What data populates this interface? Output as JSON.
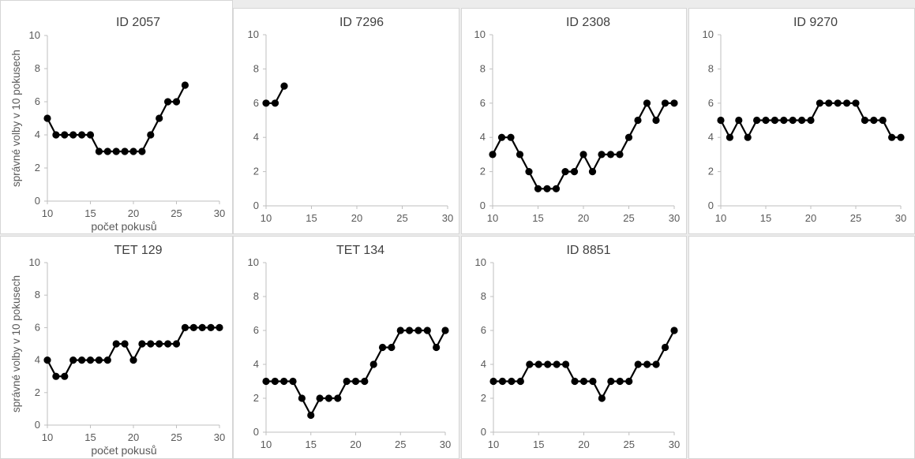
{
  "chart_data": [
    {
      "type": "line",
      "title": "ID 2057",
      "ylabel": "správné volby v 10 pokusech",
      "xlabel": "počet pokusů",
      "xlim": [
        10,
        30
      ],
      "ylim": [
        0,
        10
      ],
      "xticks": [
        10,
        15,
        20,
        25,
        30
      ],
      "yticks": [
        0,
        2,
        4,
        6,
        8,
        10
      ],
      "grid": false,
      "color": "#000000",
      "series": [
        {
          "x": [
            10,
            11,
            12,
            13,
            14,
            15,
            16,
            17,
            18,
            19,
            20,
            21,
            22,
            23,
            24,
            25,
            26
          ],
          "y": [
            5,
            4,
            4,
            4,
            4,
            4,
            3,
            3,
            3,
            3,
            3,
            3,
            4,
            5,
            6,
            6,
            7
          ]
        }
      ]
    },
    {
      "type": "line",
      "title": "ID 7296",
      "ylabel": "",
      "xlabel": "",
      "xlim": [
        10,
        30
      ],
      "ylim": [
        0,
        10
      ],
      "xticks": [
        10,
        15,
        20,
        25,
        30
      ],
      "yticks": [
        0,
        2,
        4,
        6,
        8,
        10
      ],
      "grid": false,
      "color": "#000000",
      "series": [
        {
          "x": [
            10,
            11,
            12
          ],
          "y": [
            6,
            6,
            7
          ]
        }
      ]
    },
    {
      "type": "line",
      "title": "ID 2308",
      "ylabel": "",
      "xlabel": "",
      "xlim": [
        10,
        30
      ],
      "ylim": [
        0,
        10
      ],
      "xticks": [
        10,
        15,
        20,
        25,
        30
      ],
      "yticks": [
        0,
        2,
        4,
        6,
        8,
        10
      ],
      "grid": false,
      "color": "#000000",
      "series": [
        {
          "x": [
            10,
            11,
            12,
            13,
            14,
            15,
            16,
            17,
            18,
            19,
            20,
            21,
            22,
            23,
            24,
            25,
            26,
            27,
            28,
            29,
            30
          ],
          "y": [
            3,
            4,
            4,
            3,
            2,
            1,
            1,
            1,
            2,
            2,
            3,
            2,
            3,
            3,
            3,
            4,
            5,
            6,
            5,
            6,
            6
          ]
        }
      ]
    },
    {
      "type": "line",
      "title": "ID 9270",
      "ylabel": "",
      "xlabel": "",
      "xlim": [
        10,
        30
      ],
      "ylim": [
        0,
        10
      ],
      "xticks": [
        10,
        15,
        20,
        25,
        30
      ],
      "yticks": [
        0,
        2,
        4,
        6,
        8,
        10
      ],
      "grid": false,
      "color": "#000000",
      "series": [
        {
          "x": [
            10,
            11,
            12,
            13,
            14,
            15,
            16,
            17,
            18,
            19,
            20,
            21,
            22,
            23,
            24,
            25,
            26,
            27,
            28,
            29,
            30
          ],
          "y": [
            5,
            4,
            5,
            4,
            5,
            5,
            5,
            5,
            5,
            5,
            5,
            6,
            6,
            6,
            6,
            6,
            5,
            5,
            5,
            4,
            4
          ]
        }
      ]
    },
    {
      "type": "line",
      "title": "TET 129",
      "ylabel": "správné volby v 10 pokusech",
      "xlabel": "počet pokusů",
      "xlim": [
        10,
        30
      ],
      "ylim": [
        0,
        10
      ],
      "xticks": [
        10,
        15,
        20,
        25,
        30
      ],
      "yticks": [
        0,
        2,
        4,
        6,
        8,
        10
      ],
      "grid": false,
      "color": "#000000",
      "series": [
        {
          "x": [
            10,
            11,
            12,
            13,
            14,
            15,
            16,
            17,
            18,
            19,
            20,
            21,
            22,
            23,
            24,
            25,
            26,
            27,
            28,
            29,
            30
          ],
          "y": [
            4,
            3,
            3,
            4,
            4,
            4,
            4,
            4,
            5,
            5,
            4,
            5,
            5,
            5,
            5,
            5,
            6,
            6,
            6,
            6,
            6
          ]
        }
      ]
    },
    {
      "type": "line",
      "title": "TET 134",
      "ylabel": "",
      "xlabel": "",
      "xlim": [
        10,
        30
      ],
      "ylim": [
        0,
        10
      ],
      "xticks": [
        10,
        15,
        20,
        25,
        30
      ],
      "yticks": [
        0,
        2,
        4,
        6,
        8,
        10
      ],
      "grid": false,
      "color": "#000000",
      "series": [
        {
          "x": [
            10,
            11,
            12,
            13,
            14,
            15,
            16,
            17,
            18,
            19,
            20,
            21,
            22,
            23,
            24,
            25,
            26,
            27,
            28,
            29,
            30
          ],
          "y": [
            3,
            3,
            3,
            3,
            2,
            1,
            2,
            2,
            2,
            3,
            3,
            3,
            4,
            5,
            5,
            6,
            6,
            6,
            6,
            5,
            6
          ]
        }
      ]
    },
    {
      "type": "line",
      "title": "ID 8851",
      "ylabel": "",
      "xlabel": "",
      "xlim": [
        10,
        30
      ],
      "ylim": [
        0,
        10
      ],
      "xticks": [
        10,
        15,
        20,
        25,
        30
      ],
      "yticks": [
        0,
        2,
        4,
        6,
        8,
        10
      ],
      "grid": false,
      "color": "#000000",
      "series": [
        {
          "x": [
            10,
            11,
            12,
            13,
            14,
            15,
            16,
            17,
            18,
            19,
            20,
            21,
            22,
            23,
            24,
            25,
            26,
            27,
            28,
            29,
            30
          ],
          "y": [
            3,
            3,
            3,
            3,
            4,
            4,
            4,
            4,
            4,
            3,
            3,
            3,
            2,
            3,
            3,
            3,
            4,
            4,
            4,
            5,
            6
          ]
        }
      ]
    }
  ]
}
